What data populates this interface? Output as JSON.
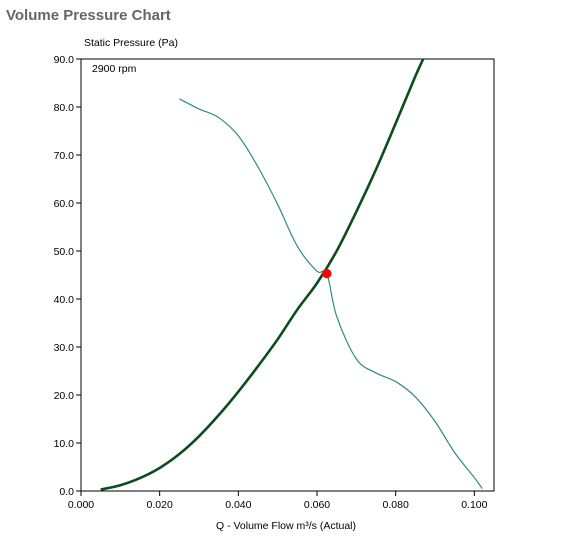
{
  "page": {
    "title": "Volume Pressure Chart"
  },
  "chart_data": {
    "type": "line",
    "title": "Volume Pressure Chart",
    "xlabel": "Q - Volume Flow m³/s (Actual)",
    "ylabel": "Static Pressure (Pa)",
    "annotation": "2900 rpm",
    "xlim": [
      0.0,
      0.105
    ],
    "ylim": [
      0.0,
      90.0
    ],
    "x_ticks": [
      "0.000",
      "0.020",
      "0.040",
      "0.060",
      "0.080",
      "0.100"
    ],
    "x_tick_values": [
      0.0,
      0.02,
      0.04,
      0.06,
      0.08,
      0.1
    ],
    "y_ticks": [
      "0.0",
      "10.0",
      "20.0",
      "30.0",
      "40.0",
      "50.0",
      "60.0",
      "70.0",
      "80.0",
      "90.0"
    ],
    "y_tick_values": [
      0,
      10,
      20,
      30,
      40,
      50,
      60,
      70,
      80,
      90
    ],
    "grid": false,
    "series": [
      {
        "name": "",
        "color": "#0b4d1c",
        "x": [
          0.005,
          0.01,
          0.015,
          0.02,
          0.025,
          0.03,
          0.035,
          0.04,
          0.045,
          0.05,
          0.055,
          0.06,
          0.065,
          0.07,
          0.075,
          0.08,
          0.085,
          0.087
        ],
        "y": [
          0.3,
          1.2,
          2.7,
          4.8,
          7.7,
          11.4,
          15.8,
          20.7,
          26.0,
          31.6,
          37.8,
          43.3,
          50.0,
          58.2,
          67.0,
          76.6,
          86.4,
          90.0
        ]
      },
      {
        "name": "",
        "color": "#2e8b85",
        "x": [
          0.025,
          0.03,
          0.035,
          0.04,
          0.045,
          0.05,
          0.055,
          0.06,
          0.0625,
          0.065,
          0.07,
          0.075,
          0.08,
          0.085,
          0.09,
          0.095,
          0.1,
          0.102
        ],
        "y": [
          81.7,
          79.6,
          77.8,
          74.0,
          67.5,
          59.7,
          51.0,
          45.8,
          45.3,
          36.4,
          27.5,
          24.6,
          22.8,
          19.6,
          14.5,
          8.0,
          2.8,
          0.5
        ]
      }
    ],
    "operating_point": {
      "x": 0.0625,
      "y": 45.3,
      "color": "#ff0000"
    }
  }
}
